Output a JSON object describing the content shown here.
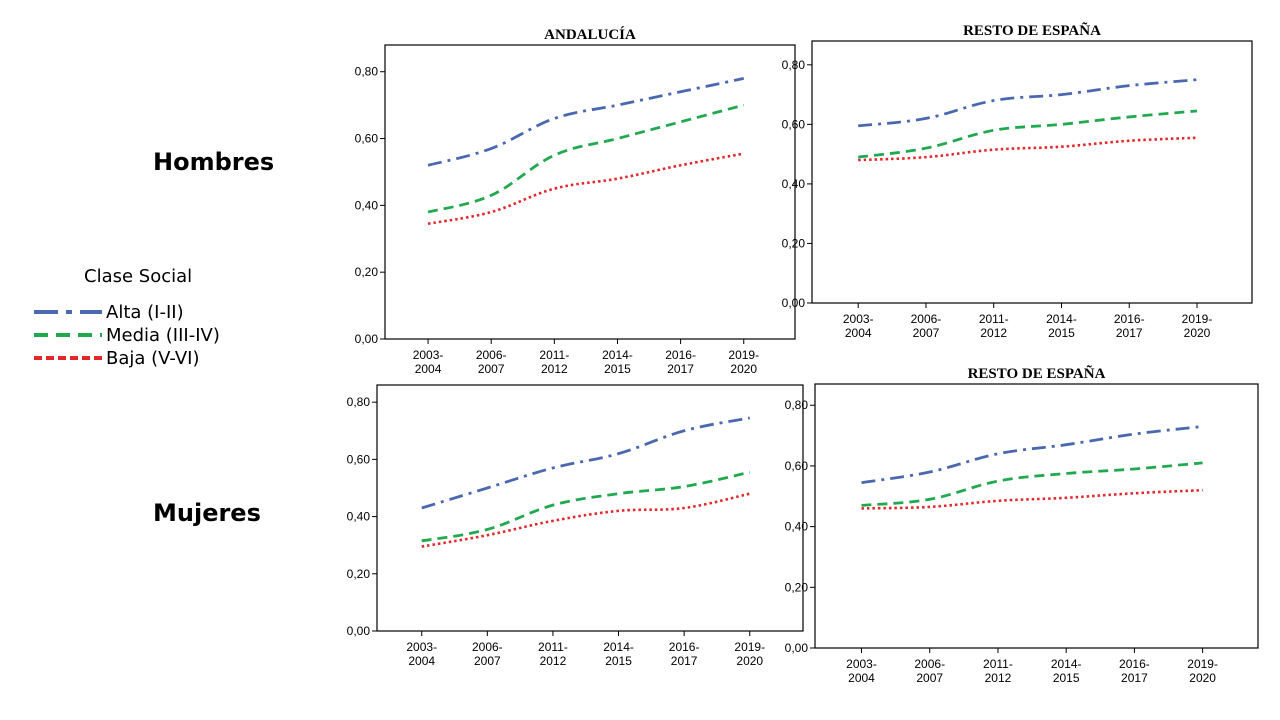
{
  "row_labels": {
    "men": "Hombres",
    "women": "Mujeres"
  },
  "legend": {
    "title": "Clase Social",
    "items": [
      {
        "label": "Alta (I-II)",
        "color": "#4a68b0",
        "dash": "dashdot"
      },
      {
        "label": "Media (III-IV)",
        "color": "#21a94f",
        "dash": "dash"
      },
      {
        "label": "Baja (V-VI)",
        "color": "#e3262a",
        "dash": "dot"
      }
    ]
  },
  "chart_data": [
    {
      "type": "line",
      "title": "ANDALUCÍA",
      "categories": [
        "2003-2004",
        "2006-2007",
        "2011-2012",
        "2014-2015",
        "2016-2017",
        "2019-2020"
      ],
      "yticks": [
        "0,00",
        "0,20",
        "0,40",
        "0,60",
        "0,80"
      ],
      "ylim": [
        0,
        0.88
      ],
      "series": [
        {
          "name": "Alta (I-II)",
          "values": [
            0.52,
            0.57,
            0.66,
            0.7,
            0.74,
            0.78
          ]
        },
        {
          "name": "Media (III-IV)",
          "values": [
            0.38,
            0.43,
            0.55,
            0.6,
            0.65,
            0.7
          ]
        },
        {
          "name": "Baja (V-VI)",
          "values": [
            0.345,
            0.38,
            0.45,
            0.48,
            0.52,
            0.555
          ]
        }
      ]
    },
    {
      "type": "line",
      "title": "RESTO DE ESPAÑA",
      "categories": [
        "2003-2004",
        "2006-2007",
        "2011-2012",
        "2014-2015",
        "2016-2017",
        "2019-2020"
      ],
      "yticks": [
        "0,00",
        "0,20",
        "0,40",
        "0,60",
        "0,80"
      ],
      "ylim": [
        0,
        0.88
      ],
      "series": [
        {
          "name": "Alta (I-II)",
          "values": [
            0.595,
            0.62,
            0.68,
            0.7,
            0.73,
            0.75
          ]
        },
        {
          "name": "Media (III-IV)",
          "values": [
            0.49,
            0.52,
            0.58,
            0.6,
            0.625,
            0.645
          ]
        },
        {
          "name": "Baja (V-VI)",
          "values": [
            0.48,
            0.49,
            0.515,
            0.525,
            0.545,
            0.555
          ]
        }
      ]
    },
    {
      "type": "line",
      "title": "",
      "categories": [
        "2003-2004",
        "2006-2007",
        "2011-2012",
        "2014-2015",
        "2016-2017",
        "2019-2020"
      ],
      "yticks": [
        "0,00",
        "0,20",
        "0,40",
        "0,60",
        "0,80"
      ],
      "ylim": [
        0,
        0.86
      ],
      "series": [
        {
          "name": "Alta (I-II)",
          "values": [
            0.43,
            0.5,
            0.57,
            0.62,
            0.7,
            0.745
          ]
        },
        {
          "name": "Media (III-IV)",
          "values": [
            0.315,
            0.355,
            0.44,
            0.48,
            0.505,
            0.555
          ]
        },
        {
          "name": "Baja (V-VI)",
          "values": [
            0.295,
            0.335,
            0.385,
            0.42,
            0.43,
            0.48
          ]
        }
      ]
    },
    {
      "type": "line",
      "title": "RESTO DE ESPAÑA",
      "categories": [
        "2003-2004",
        "2006-2007",
        "2011-2012",
        "2014-2015",
        "2016-2017",
        "2019-2020"
      ],
      "yticks": [
        "0,00",
        "0,20",
        "0,40",
        "0,60",
        "0,80"
      ],
      "ylim": [
        0,
        0.87
      ],
      "series": [
        {
          "name": "Alta (I-II)",
          "values": [
            0.545,
            0.58,
            0.64,
            0.67,
            0.705,
            0.73
          ]
        },
        {
          "name": "Media (III-IV)",
          "values": [
            0.47,
            0.49,
            0.55,
            0.575,
            0.59,
            0.61
          ]
        },
        {
          "name": "Baja (V-VI)",
          "values": [
            0.46,
            0.465,
            0.485,
            0.495,
            0.51,
            0.52
          ]
        }
      ]
    }
  ]
}
